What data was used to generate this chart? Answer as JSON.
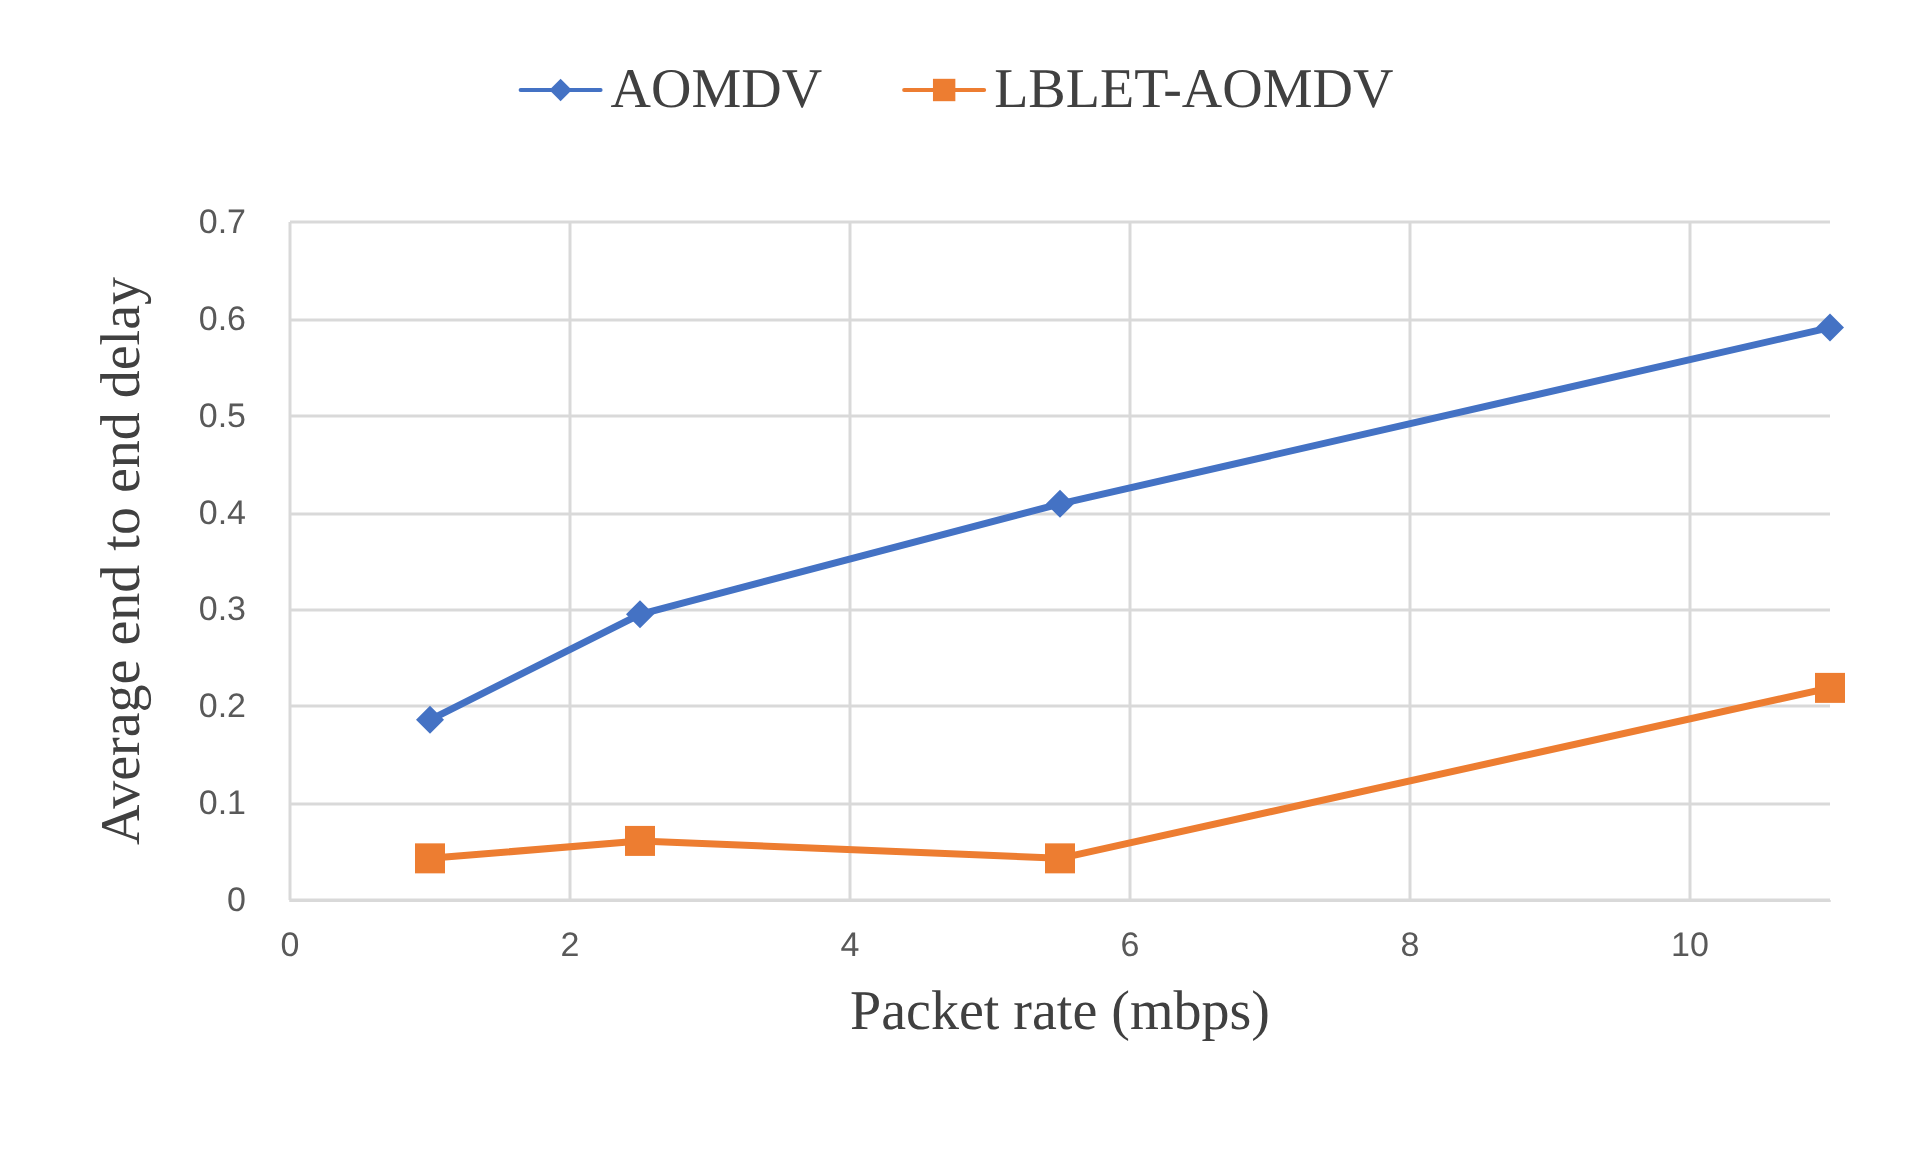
{
  "chart_data": {
    "type": "line",
    "xlabel": "Packet rate (mbps)",
    "ylabel": "Average end to end delay",
    "x": [
      1,
      2.5,
      5.5,
      11
    ],
    "series": [
      {
        "name": "AOMDV",
        "color": "#4472c4",
        "marker": "diamond",
        "values": [
          0.186,
          0.295,
          0.409,
          0.591
        ]
      },
      {
        "name": "LBLET-AOMDV",
        "color": "#ed7d31",
        "marker": "square",
        "values": [
          0.043,
          0.061,
          0.043,
          0.219
        ]
      }
    ],
    "xlim": [
      0,
      11
    ],
    "xticks": [
      0,
      2,
      4,
      6,
      8,
      10
    ],
    "ylim": [
      0,
      0.7
    ],
    "yticks": [
      0,
      0.1,
      0.2,
      0.3,
      0.4,
      0.5,
      0.6,
      0.7
    ],
    "grid": true,
    "legend": "top",
    "line_style": "solid"
  }
}
